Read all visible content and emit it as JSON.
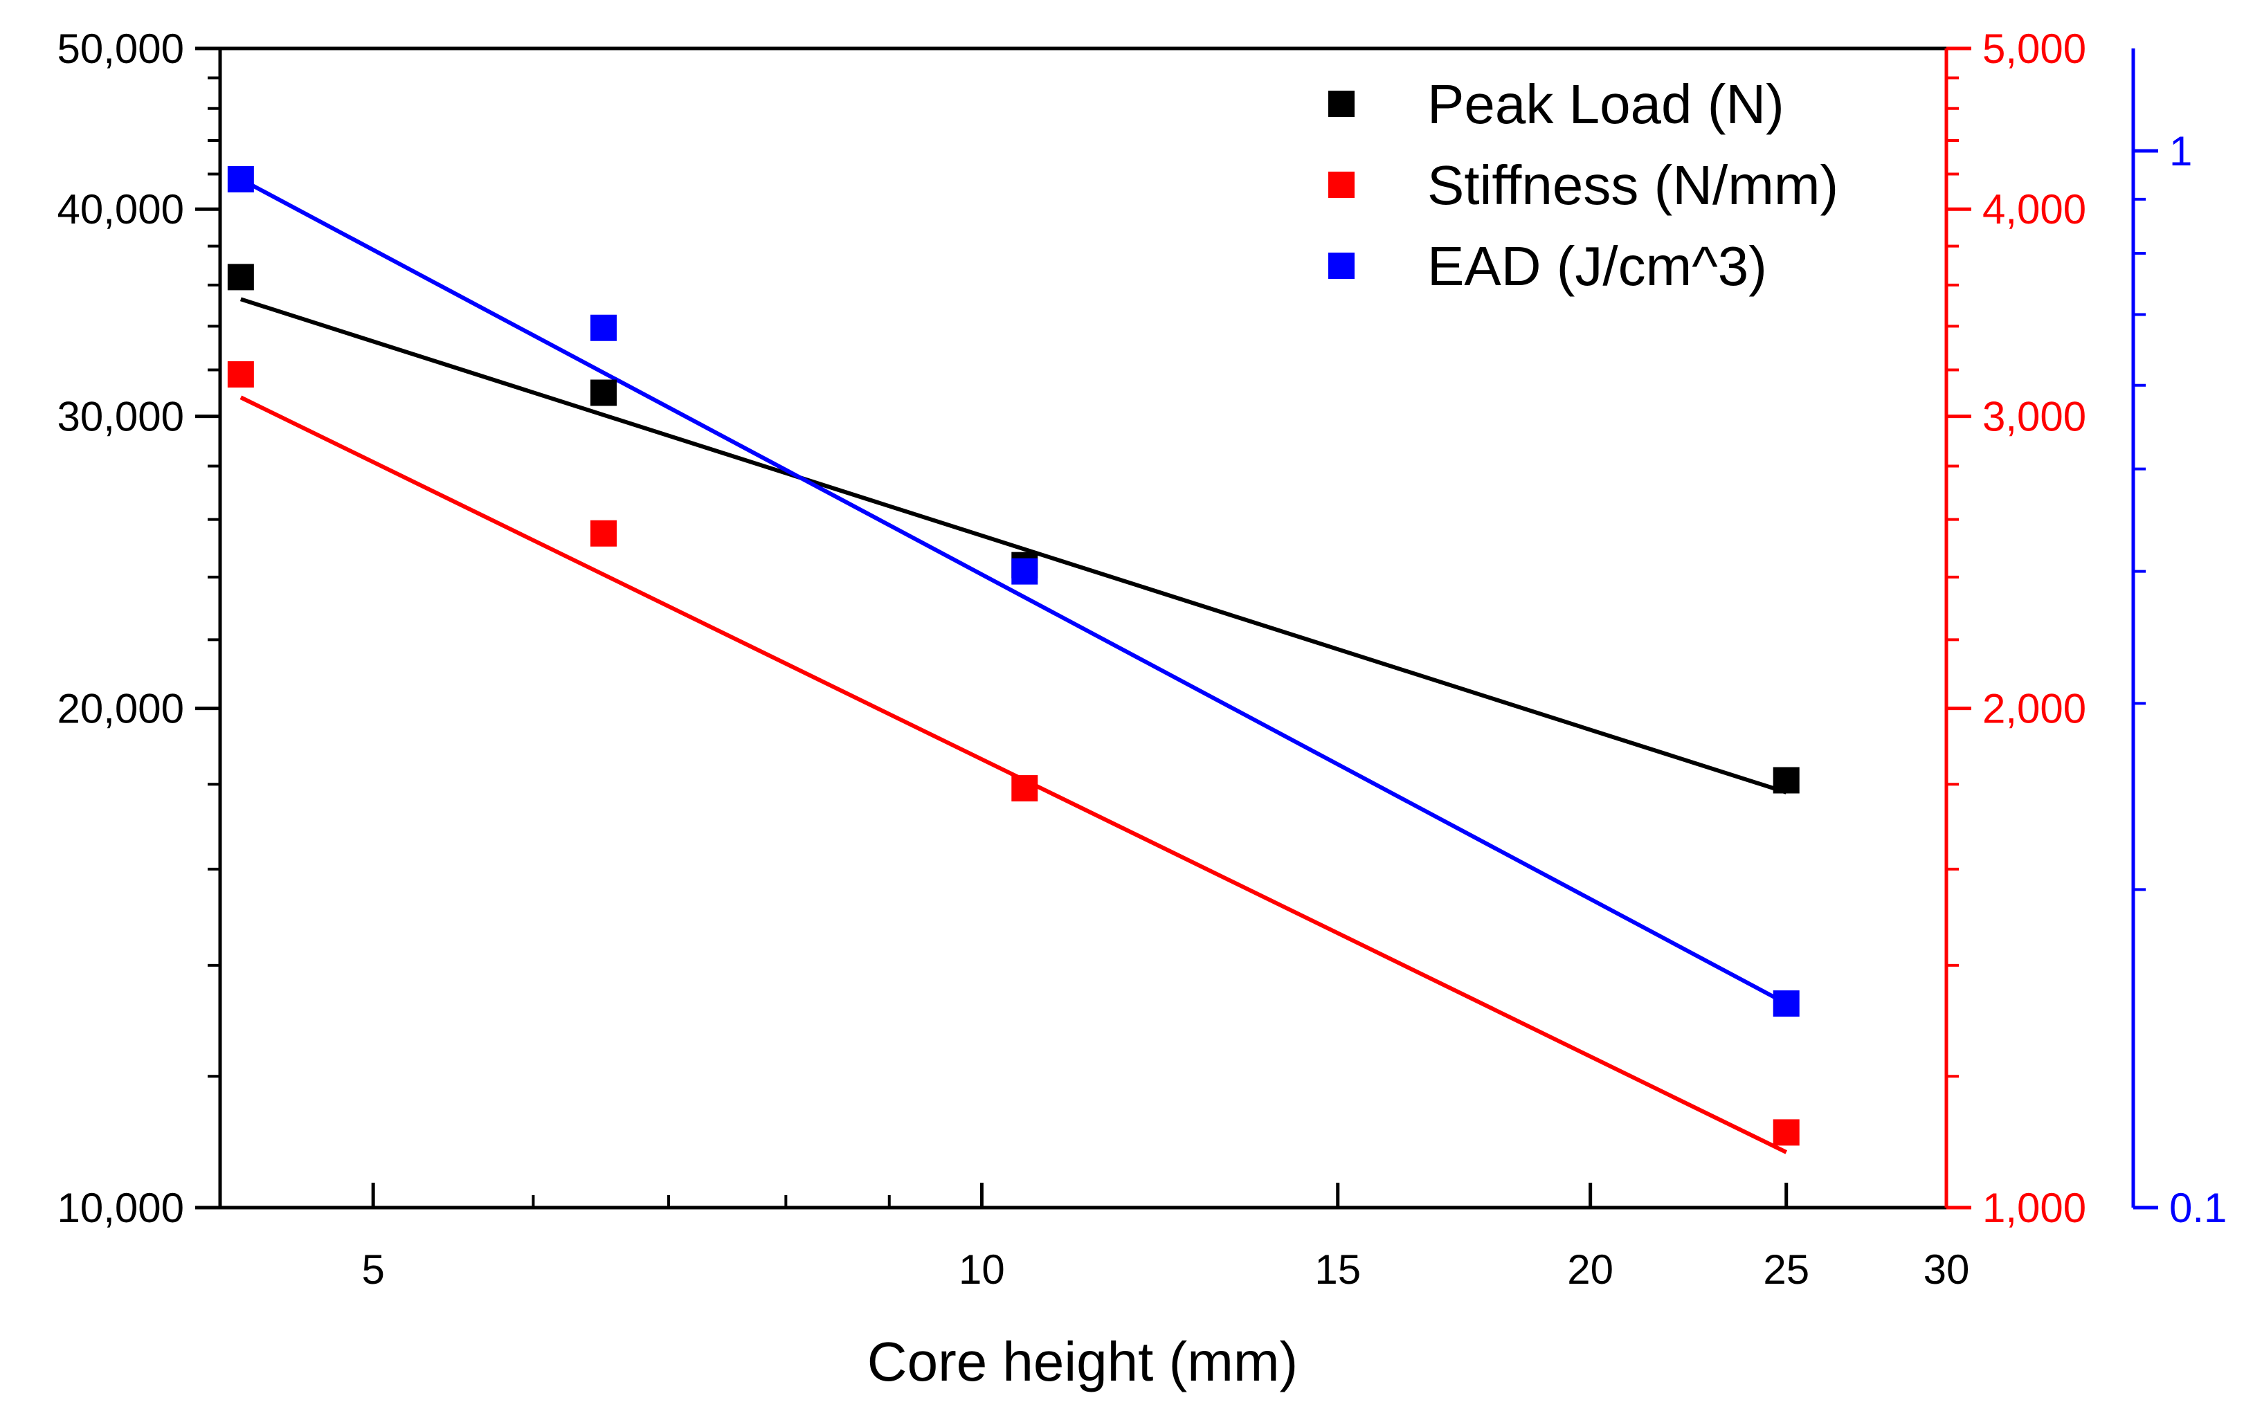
{
  "chart_data": {
    "type": "scatter",
    "title": "",
    "xlabel": "Core height (mm)",
    "x_scale": "log",
    "xlim": [
      4.2,
      30
    ],
    "x_ticks": [
      5,
      10,
      15,
      20,
      25,
      30
    ],
    "x_tick_labels": [
      "5",
      "10",
      "15",
      "20",
      "25",
      "30"
    ],
    "y_axes": [
      {
        "id": "left",
        "color": "#000000",
        "scale": "log",
        "lim": [
          10000,
          50000
        ],
        "ticks": [
          10000,
          20000,
          30000,
          40000,
          50000
        ],
        "tick_labels": [
          "10,000",
          "20,000",
          "30,000",
          "40,000",
          "50,000"
        ]
      },
      {
        "id": "right1",
        "color": "#ff0000",
        "scale": "log",
        "lim": [
          1000,
          5000
        ],
        "ticks": [
          1000,
          2000,
          3000,
          4000,
          5000
        ],
        "tick_labels": [
          "1,000",
          "2,000",
          "3,000",
          "4,000",
          "5,000"
        ]
      },
      {
        "id": "right2",
        "color": "#0000ff",
        "scale": "log",
        "lim": [
          0.1,
          1.25
        ],
        "ticks": [
          0.1,
          1
        ],
        "tick_labels": [
          "0.1",
          "1"
        ]
      }
    ],
    "series": [
      {
        "name": "Peak Load (N)",
        "axis": "left",
        "color": "#000000",
        "x": [
          4.3,
          6.5,
          10.5,
          25
        ],
        "y": [
          36400,
          31000,
          24400,
          18100
        ],
        "fit": [
          [
            4.3,
            35300
          ],
          [
            25,
            17800
          ]
        ]
      },
      {
        "name": "Stiffness (N/mm)",
        "axis": "right1",
        "color": "#ff0000",
        "x": [
          4.3,
          6.5,
          10.5,
          25
        ],
        "y": [
          3180,
          2550,
          1790,
          1110
        ],
        "fit": [
          [
            4.3,
            3080
          ],
          [
            25,
            1080
          ]
        ]
      },
      {
        "name": "EAD (J/cm^3)",
        "axis": "right2",
        "color": "#0000ff",
        "x": [
          4.3,
          6.5,
          10.5,
          25
        ],
        "y": [
          0.94,
          0.68,
          0.4,
          0.156
        ],
        "fit": [
          [
            4.3,
            0.94
          ],
          [
            25,
            0.156
          ]
        ]
      }
    ],
    "legend_position": "top-right",
    "grid": false
  }
}
